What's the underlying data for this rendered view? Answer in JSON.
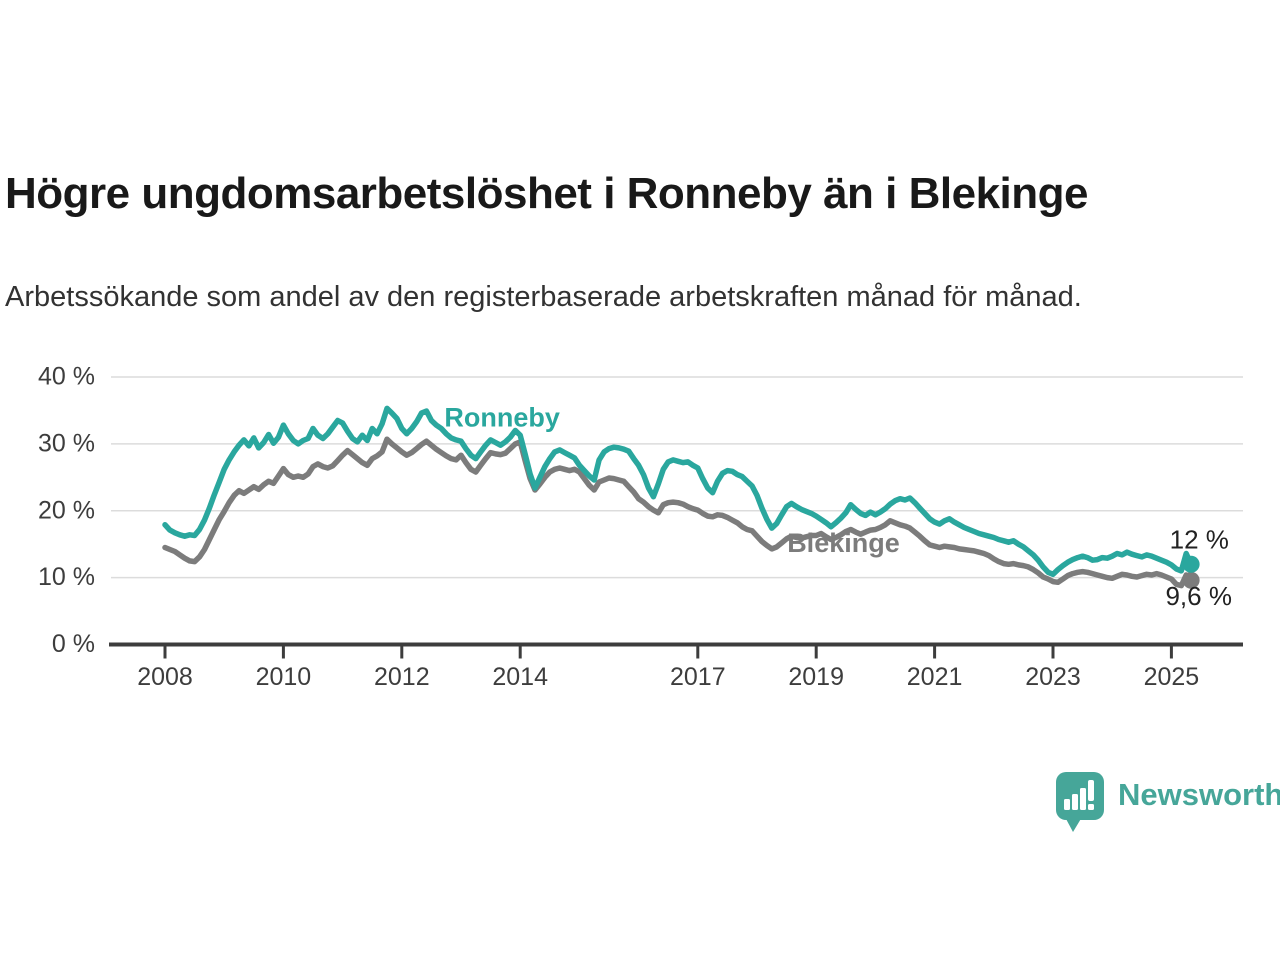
{
  "header": {
    "title": "Högre ungdomsarbetslöshet i Ronneby än i Blekinge",
    "subtitle": "Arbetssökande som andel av den registerbaserade arbetskraften månad för månad."
  },
  "footer": {
    "brand": "Newsworthy",
    "brand_color": "#46a699",
    "logo_icon": "bar-chart-exclamation-speech-bubble"
  },
  "chart_data": {
    "type": "line",
    "title": "Högre ungdomsarbetslöshet i Ronneby än i Blekinge",
    "subtitle": "Arbetssökande som andel av den registerbaserade arbetskraften månad för månad.",
    "frequency": "monthly",
    "start_year": 2008,
    "start_month": 1,
    "ylim": [
      0,
      40
    ],
    "grid": true,
    "colors": {
      "ronneby": "#2aa79e",
      "blekinge": "#7c7c7c",
      "axis": "#3d3d3d",
      "gridline": "#dcdcdc",
      "annotation_text": "#222222"
    },
    "y_ticks": [
      {
        "value": 0,
        "label": "0 %"
      },
      {
        "value": 10,
        "label": "10 %"
      },
      {
        "value": 20,
        "label": "20 %"
      },
      {
        "value": 30,
        "label": "30 %"
      },
      {
        "value": 40,
        "label": "40 %"
      }
    ],
    "x_ticks": [
      {
        "year": 2008,
        "label": "2008"
      },
      {
        "year": 2010,
        "label": "2010"
      },
      {
        "year": 2012,
        "label": "2012"
      },
      {
        "year": 2014,
        "label": "2014"
      },
      {
        "year": 2017,
        "label": "2017"
      },
      {
        "year": 2019,
        "label": "2019"
      },
      {
        "year": 2021,
        "label": "2021"
      },
      {
        "year": 2023,
        "label": "2023"
      },
      {
        "year": 2025,
        "label": "2025"
      }
    ],
    "series": [
      {
        "name": "Ronneby",
        "color": "#2aa79e",
        "values": [
          17.9,
          17.1,
          16.7,
          16.4,
          16.2,
          16.4,
          16.3,
          17.2,
          18.6,
          20.4,
          22.4,
          24.3,
          26.2,
          27.6,
          28.8,
          29.8,
          30.6,
          29.7,
          30.9,
          29.4,
          30.2,
          31.4,
          30.1,
          31.0,
          32.8,
          31.5,
          30.5,
          30.0,
          30.5,
          30.8,
          32.3,
          31.3,
          30.8,
          31.5,
          32.5,
          33.5,
          33.1,
          31.9,
          30.8,
          30.3,
          31.3,
          30.5,
          32.3,
          31.5,
          33.0,
          35.3,
          34.6,
          33.8,
          32.3,
          31.5,
          32.3,
          33.3,
          34.6,
          34.9,
          33.5,
          32.8,
          32.3,
          31.5,
          30.9,
          30.6,
          30.4,
          29.3,
          28.3,
          27.8,
          28.8,
          29.8,
          30.6,
          30.2,
          29.8,
          30.3,
          31.0,
          32.0,
          31.3,
          28.5,
          25.5,
          23.4,
          25.0,
          26.6,
          27.8,
          28.8,
          29.1,
          28.7,
          28.3,
          27.9,
          26.8,
          26.0,
          25.2,
          24.6,
          27.6,
          28.8,
          29.3,
          29.5,
          29.4,
          29.2,
          28.9,
          27.8,
          26.8,
          25.4,
          23.4,
          22.1,
          24.0,
          26.2,
          27.3,
          27.6,
          27.4,
          27.2,
          27.3,
          26.8,
          26.4,
          24.8,
          23.4,
          22.7,
          24.4,
          25.6,
          26.0,
          25.9,
          25.4,
          25.1,
          24.4,
          23.7,
          22.3,
          20.4,
          18.7,
          17.4,
          18.1,
          19.4,
          20.6,
          21.1,
          20.6,
          20.2,
          19.9,
          19.6,
          19.2,
          18.7,
          18.2,
          17.6,
          18.2,
          18.9,
          19.7,
          20.9,
          20.2,
          19.6,
          19.3,
          19.8,
          19.4,
          19.8,
          20.3,
          21.0,
          21.5,
          21.8,
          21.6,
          21.9,
          21.2,
          20.4,
          19.6,
          18.8,
          18.3,
          18.0,
          18.5,
          18.8,
          18.3,
          17.9,
          17.5,
          17.2,
          16.9,
          16.6,
          16.4,
          16.2,
          16.0,
          15.7,
          15.5,
          15.3,
          15.5,
          15.0,
          14.6,
          14.0,
          13.4,
          12.6,
          11.6,
          10.8,
          10.5,
          11.2,
          11.8,
          12.3,
          12.7,
          13.0,
          13.2,
          13.0,
          12.6,
          12.7,
          13.0,
          12.9,
          13.2,
          13.6,
          13.4,
          13.8,
          13.5,
          13.3,
          13.1,
          13.4,
          13.2,
          12.9,
          12.6,
          12.3,
          11.9,
          11.3,
          11.0,
          13.6,
          12.0
        ],
        "last_value": 12.0,
        "end_label": "12 %"
      },
      {
        "name": "Blekinge",
        "color": "#7c7c7c",
        "values": [
          14.5,
          14.2,
          13.9,
          13.4,
          12.9,
          12.5,
          12.4,
          13.1,
          14.2,
          15.7,
          17.2,
          18.7,
          19.9,
          21.2,
          22.3,
          23.0,
          22.6,
          23.1,
          23.6,
          23.2,
          23.9,
          24.4,
          24.1,
          25.2,
          26.3,
          25.4,
          25.0,
          25.2,
          25.0,
          25.5,
          26.6,
          27.0,
          26.6,
          26.4,
          26.7,
          27.5,
          28.3,
          29.0,
          28.4,
          27.8,
          27.2,
          26.8,
          27.8,
          28.2,
          28.8,
          30.7,
          30.0,
          29.4,
          28.8,
          28.3,
          28.7,
          29.3,
          29.9,
          30.4,
          29.8,
          29.2,
          28.7,
          28.2,
          27.8,
          27.6,
          28.3,
          27.2,
          26.2,
          25.8,
          26.8,
          27.8,
          28.7,
          28.5,
          28.4,
          28.6,
          29.3,
          30.0,
          30.3,
          27.5,
          24.8,
          23.1,
          24.0,
          25.0,
          25.8,
          26.2,
          26.4,
          26.2,
          26.0,
          26.2,
          25.8,
          24.8,
          23.8,
          23.1,
          24.3,
          24.6,
          24.9,
          24.8,
          24.6,
          24.4,
          23.6,
          22.8,
          21.8,
          21.3,
          20.6,
          20.1,
          19.7,
          20.9,
          21.2,
          21.3,
          21.2,
          21.0,
          20.6,
          20.3,
          20.1,
          19.6,
          19.2,
          19.1,
          19.4,
          19.3,
          19.0,
          18.6,
          18.2,
          17.6,
          17.2,
          17.0,
          16.2,
          15.4,
          14.8,
          14.3,
          14.6,
          15.2,
          15.8,
          16.2,
          16.0,
          15.9,
          16.1,
          16.3,
          16.3,
          16.6,
          16.1,
          15.7,
          16.0,
          16.4,
          16.9,
          17.2,
          16.8,
          16.5,
          16.8,
          17.1,
          17.2,
          17.5,
          17.9,
          18.5,
          18.2,
          17.9,
          17.7,
          17.4,
          16.8,
          16.2,
          15.5,
          14.9,
          14.7,
          14.5,
          14.7,
          14.6,
          14.5,
          14.3,
          14.2,
          14.1,
          14.0,
          13.8,
          13.6,
          13.3,
          12.8,
          12.4,
          12.1,
          12.0,
          12.1,
          11.9,
          11.8,
          11.6,
          11.2,
          10.7,
          10.1,
          9.8,
          9.4,
          9.3,
          9.8,
          10.3,
          10.6,
          10.8,
          10.9,
          10.8,
          10.6,
          10.4,
          10.2,
          10.0,
          9.9,
          10.2,
          10.5,
          10.4,
          10.2,
          10.1,
          10.3,
          10.5,
          10.4,
          10.6,
          10.4,
          10.1,
          9.8,
          9.0,
          8.8,
          10.4,
          9.6
        ],
        "last_value": 9.6,
        "end_label": "9,6 %"
      }
    ],
    "series_labels": [
      {
        "series": "Ronneby",
        "text": "Ronneby",
        "year": 2012.72,
        "pct": 33.7
      },
      {
        "series": "Blekinge",
        "text": "Blekinge",
        "year": 2018.51,
        "pct": 14.9
      }
    ],
    "end_labels": [
      {
        "series": "Ronneby",
        "text": "12 %",
        "year": 2024.97,
        "pct": 15.4
      },
      {
        "series": "Blekinge",
        "text": "9,6 %",
        "year": 2024.9,
        "pct": 6.9
      }
    ],
    "legend_position": "inline"
  }
}
